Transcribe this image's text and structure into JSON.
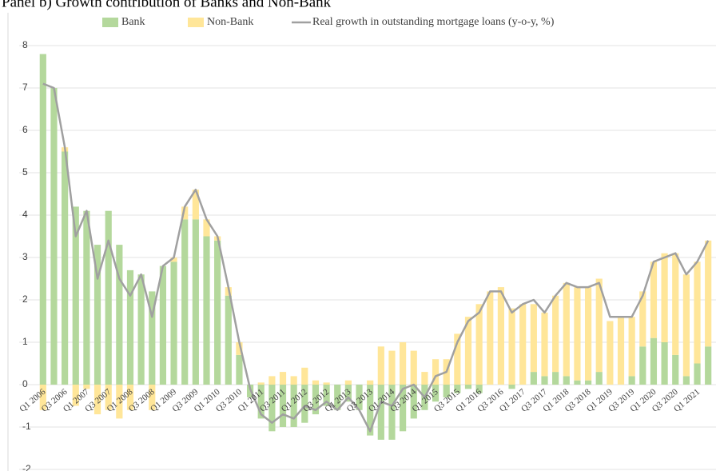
{
  "chart_data": {
    "type": "stacked-bar-line",
    "title": "Panel b) Growth contribution of Banks and Non-Bank",
    "categories": [
      "Q1 2006",
      null,
      "Q3 2006",
      null,
      "Q1 2007",
      null,
      "Q3 2007",
      null,
      "Q1 2008",
      null,
      "Q3 2008",
      null,
      "Q1 2009",
      null,
      "Q3 2009",
      null,
      "Q1 2010",
      null,
      "Q3 2010",
      null,
      "Q1 2011",
      null,
      "Q3 2011",
      null,
      "Q1 2012",
      null,
      "Q3 2012",
      null,
      "Q1 2013",
      null,
      "Q3 2013",
      null,
      "Q1 2014",
      null,
      "Q3 2014",
      null,
      "Q1 2015",
      null,
      "Q3 2015",
      null,
      "Q1 2016",
      null,
      "Q3 2016",
      null,
      "Q1 2017",
      null,
      "Q3 2017",
      null,
      "Q1 2018",
      null,
      "Q3 2018",
      null,
      "Q1 2019",
      null,
      "Q3 2019",
      null,
      "Q1 2020",
      null,
      "Q3 2020",
      null,
      "Q1 2021",
      null
    ],
    "series": [
      {
        "name": "Bank",
        "color": "#b4d89c",
        "kind": "bar",
        "values": [
          7.8,
          7.0,
          5.5,
          4.2,
          4.1,
          3.3,
          4.1,
          3.3,
          2.7,
          2.6,
          2.2,
          2.8,
          2.9,
          3.9,
          3.9,
          3.5,
          3.4,
          2.1,
          0.7,
          -0.3,
          -0.8,
          -1.1,
          -1.0,
          -1.0,
          -0.9,
          -0.7,
          -0.5,
          -0.6,
          -0.4,
          -0.6,
          -1.2,
          -1.3,
          -1.3,
          -1.1,
          -0.8,
          -0.6,
          -0.4,
          -0.3,
          -0.2,
          -0.1,
          -0.2,
          0,
          0,
          -0.1,
          0,
          0.3,
          0.2,
          0.3,
          0.2,
          0.1,
          0.1,
          0.3,
          0,
          0,
          0.2,
          0.9,
          1.1,
          1.0,
          0.7,
          0.2,
          0.5,
          0.9
        ]
      },
      {
        "name": "Non-Bank",
        "color": "#ffe699",
        "kind": "bar",
        "values": [
          -0.6,
          0,
          0.1,
          -0.5,
          -0.1,
          -0.7,
          -0.6,
          -0.8,
          -0.6,
          0,
          -0.6,
          0,
          0.1,
          0.3,
          0.7,
          0.4,
          0.1,
          0.2,
          0.3,
          0,
          0.05,
          0.2,
          0.3,
          0.2,
          0.4,
          0.1,
          0.05,
          0,
          0.1,
          0,
          0.1,
          0.9,
          0.8,
          1.0,
          0.8,
          0.3,
          0.6,
          0.6,
          1.2,
          1.6,
          1.9,
          2.2,
          2.3,
          1.8,
          1.9,
          1.6,
          1.5,
          1.8,
          2.2,
          2.2,
          2.2,
          2.2,
          1.5,
          1.6,
          1.4,
          1.3,
          1.8,
          2.1,
          2.4,
          2.4,
          2.4,
          2.5
        ]
      },
      {
        "name": "Real growth in outstanding mortgage loans (y-o-y, %)",
        "color": "#a0a0a0",
        "kind": "line",
        "values": [
          7.1,
          7.0,
          5.6,
          3.5,
          4.1,
          2.5,
          3.4,
          2.5,
          2.1,
          2.6,
          1.6,
          2.8,
          3.0,
          4.2,
          4.6,
          3.9,
          3.5,
          2.3,
          1.0,
          -0.1,
          -0.7,
          -0.9,
          -0.7,
          -0.8,
          -0.5,
          -0.6,
          -0.4,
          -0.6,
          -0.3,
          -0.6,
          -1.1,
          -0.4,
          -0.5,
          -0.1,
          0,
          -0.3,
          0.2,
          0.3,
          1.0,
          1.5,
          1.7,
          2.2,
          2.2,
          1.7,
          1.9,
          2.0,
          1.7,
          2.1,
          2.4,
          2.3,
          2.3,
          2.4,
          1.6,
          1.6,
          1.6,
          2.1,
          2.9,
          3.0,
          3.1,
          2.6,
          2.9,
          3.4
        ]
      }
    ],
    "ylim": [
      -2,
      8
    ],
    "yticks": [
      -2,
      -1,
      0,
      1,
      2,
      3,
      4,
      5,
      6,
      7,
      8
    ],
    "grid": true,
    "legend": "top"
  }
}
